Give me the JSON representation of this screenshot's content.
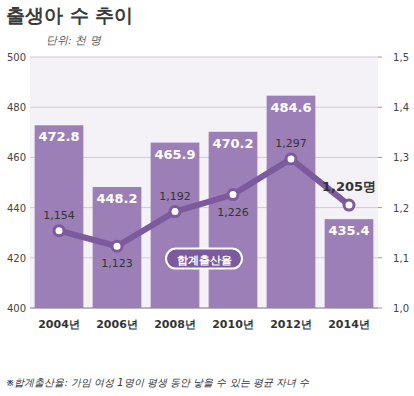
{
  "chart_data": {
    "type": "bar",
    "title": "출생아 수 추이",
    "subtitle": "단위: 천 명",
    "annotations": [
      "※합계출산율: 가임 여성 1명이 평생 동안 낳을 수 있는 평균 자녀 수"
    ],
    "categories": [
      "2004년",
      "2006년",
      "2008년",
      "2010년",
      "2012년",
      "2014년"
    ],
    "series": [
      {
        "type": "bar",
        "color": "#9b7fb6",
        "values": [
          472.8,
          448.2,
          465.9,
          470.2,
          484.6,
          435.4
        ]
      },
      {
        "name": "합계출산율",
        "type": "line",
        "axis": "y2",
        "color": "#7d5a9e",
        "marker": "circle",
        "values": [
          1.154,
          1.123,
          1.192,
          1.226,
          1.297,
          1.205
        ],
        "value_labels": [
          "1,154",
          "1,123",
          "1,192",
          "1,226",
          "1,297",
          "1,205명"
        ]
      }
    ],
    "ylim": [
      400,
      500
    ],
    "yticks": [
      400,
      420,
      440,
      460,
      480,
      500
    ],
    "y2lim": [
      1.0,
      1.5
    ],
    "y2ticks": [
      {
        "value": 1.0,
        "label": "1,0"
      },
      {
        "value": 1.1,
        "label": "1,1"
      },
      {
        "value": 1.2,
        "label": "1,2"
      },
      {
        "value": 1.3,
        "label": "1,3"
      },
      {
        "value": 1.4,
        "label": "1,4"
      },
      {
        "value": 1.5,
        "label": "1,5"
      }
    ],
    "grid": true,
    "data_labels": true
  }
}
